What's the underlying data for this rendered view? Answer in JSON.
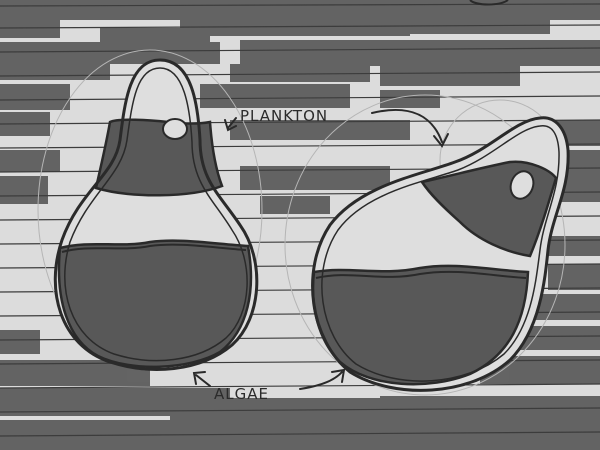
{
  "labels": {
    "plankton": "PLANKTON",
    "algae": "ALGAE"
  },
  "colors": {
    "paper": "#dcdcdc",
    "ruled_line": "#3c3c3c",
    "marker": "#5c5c5c",
    "ink": "#2a2a2a",
    "pencil": "#b8b8b8"
  }
}
